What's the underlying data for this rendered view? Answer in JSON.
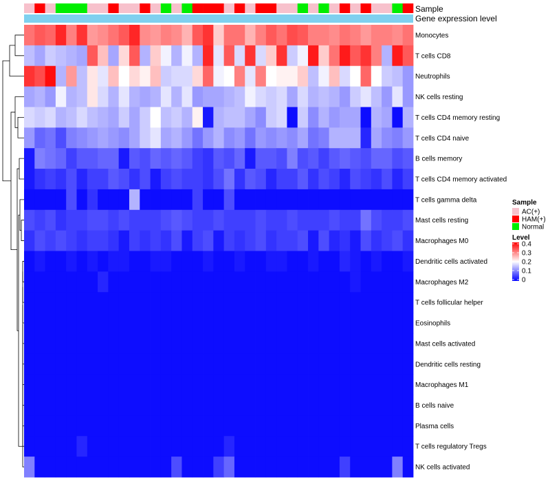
{
  "chart_data": {
    "type": "heatmap",
    "title": "",
    "annotation_tracks": [
      "Sample",
      "Gene expression level"
    ],
    "sample_groups": [
      "A",
      "H",
      "A",
      "N",
      "N",
      "N",
      "A",
      "A",
      "H",
      "A",
      "A",
      "H",
      "A",
      "N",
      "A",
      "N",
      "H",
      "H",
      "H",
      "A",
      "H",
      "A",
      "H",
      "H",
      "A",
      "A",
      "N",
      "A",
      "N",
      "A",
      "H",
      "A",
      "H",
      "A",
      "A",
      "N",
      "H"
    ],
    "group_colors": {
      "A": "#f7c1cc",
      "H": "#ff0000",
      "N": "#00ee00"
    },
    "group_legend": {
      "title": "Sample",
      "items": [
        {
          "key": "A",
          "label": "AC(+)",
          "color": "#f7c1cc"
        },
        {
          "key": "H",
          "label": "HAM(+)",
          "color": "#ff0000"
        },
        {
          "key": "N",
          "label": "Normal",
          "color": "#00ee00"
        }
      ]
    },
    "gene_expression_color": "#7fd0ef",
    "color_scale": {
      "title": "Level",
      "min": 0,
      "mid": 0.2,
      "max": 0.4,
      "low_color": "#0000ff",
      "mid_color": "#ffffff",
      "high_color": "#ff0000",
      "ticks": [
        "0.4",
        "0.3",
        "0.2",
        "0.1",
        "0"
      ]
    },
    "rows": [
      {
        "name": "Monocytes",
        "values": [
          0.31,
          0.33,
          0.32,
          0.37,
          0.3,
          0.36,
          0.28,
          0.29,
          0.31,
          0.33,
          0.37,
          0.29,
          0.28,
          0.3,
          0.29,
          0.26,
          0.33,
          0.36,
          0.24,
          0.31,
          0.31,
          0.26,
          0.3,
          0.33,
          0.31,
          0.34,
          0.33,
          0.3,
          0.3,
          0.29,
          0.31,
          0.3,
          0.28,
          0.3,
          0.3,
          0.29,
          0.31
        ]
      },
      {
        "name": "T cells CD8",
        "values": [
          0.15,
          0.13,
          0.16,
          0.15,
          0.14,
          0.13,
          0.33,
          0.25,
          0.13,
          0.23,
          0.33,
          0.14,
          0.24,
          0.19,
          0.14,
          0.19,
          0.14,
          0.37,
          0.18,
          0.33,
          0.17,
          0.36,
          0.17,
          0.24,
          0.36,
          0.16,
          0.19,
          0.38,
          0.24,
          0.31,
          0.38,
          0.33,
          0.36,
          0.3,
          0.14,
          0.38,
          0.33
        ]
      },
      {
        "name": "Neutrophils",
        "values": [
          0.36,
          0.34,
          0.39,
          0.14,
          0.28,
          0.15,
          0.22,
          0.18,
          0.25,
          0.2,
          0.23,
          0.21,
          0.25,
          0.16,
          0.17,
          0.17,
          0.23,
          0.32,
          0.19,
          0.2,
          0.3,
          0.18,
          0.3,
          0.2,
          0.21,
          0.21,
          0.24,
          0.15,
          0.19,
          0.25,
          0.17,
          0.2,
          0.32,
          0.2,
          0.16,
          0.15,
          0.12
        ]
      },
      {
        "name": "NK cells resting",
        "values": [
          0.13,
          0.14,
          0.12,
          0.19,
          0.14,
          0.15,
          0.22,
          0.17,
          0.14,
          0.18,
          0.14,
          0.13,
          0.14,
          0.18,
          0.14,
          0.18,
          0.12,
          0.13,
          0.13,
          0.14,
          0.15,
          0.19,
          0.17,
          0.16,
          0.17,
          0.13,
          0.17,
          0.14,
          0.15,
          0.14,
          0.12,
          0.16,
          0.18,
          0.15,
          0.12,
          0.18,
          0.12
        ]
      },
      {
        "name": "T cells CD4 memory resting",
        "values": [
          0.17,
          0.16,
          0.17,
          0.14,
          0.15,
          0.17,
          0.15,
          0.14,
          0.13,
          0.16,
          0.13,
          0.16,
          0.2,
          0.15,
          0.16,
          0.14,
          0.21,
          0.02,
          0.14,
          0.15,
          0.15,
          0.13,
          0.11,
          0.16,
          0.17,
          0.01,
          0.16,
          0.11,
          0.14,
          0.12,
          0.13,
          0.13,
          0.01,
          0.14,
          0.13,
          0.01,
          0.14
        ]
      },
      {
        "name": "T cells CD4 naive",
        "values": [
          0.12,
          0.08,
          0.09,
          0.06,
          0.1,
          0.11,
          0.12,
          0.13,
          0.12,
          0.11,
          0.13,
          0.16,
          0.18,
          0.13,
          0.14,
          0.12,
          0.09,
          0.12,
          0.14,
          0.11,
          0.12,
          0.09,
          0.12,
          0.11,
          0.12,
          0.11,
          0.13,
          0.09,
          0.1,
          0.14,
          0.14,
          0.14,
          0.03,
          0.13,
          0.11,
          0.1,
          0.12
        ]
      },
      {
        "name": "B cells memory",
        "values": [
          0.02,
          0.1,
          0.09,
          0.08,
          0.05,
          0.07,
          0.07,
          0.08,
          0.08,
          0.02,
          0.07,
          0.06,
          0.08,
          0.07,
          0.08,
          0.07,
          0.05,
          0.04,
          0.07,
          0.06,
          0.08,
          0.02,
          0.07,
          0.07,
          0.06,
          0.1,
          0.06,
          0.07,
          0.05,
          0.07,
          0.08,
          0.07,
          0.06,
          0.08,
          0.08,
          0.06,
          0.07
        ]
      },
      {
        "name": "T cells CD4 memory activated",
        "values": [
          0.02,
          0.04,
          0.05,
          0.04,
          0.06,
          0.03,
          0.05,
          0.05,
          0.07,
          0.06,
          0.04,
          0.06,
          0.02,
          0.05,
          0.06,
          0.05,
          0.05,
          0.04,
          0.06,
          0.09,
          0.04,
          0.07,
          0.06,
          0.03,
          0.05,
          0.05,
          0.07,
          0.04,
          0.06,
          0.05,
          0.03,
          0.06,
          0.05,
          0.04,
          0.06,
          0.03,
          0.05
        ]
      },
      {
        "name": "T cells gamma delta",
        "values": [
          0.01,
          0.01,
          0.01,
          0.01,
          0.06,
          0.01,
          0.04,
          0.01,
          0.01,
          0.01,
          0.14,
          0.01,
          0.01,
          0.01,
          0.01,
          0.01,
          0.05,
          0.01,
          0.01,
          0.06,
          0.01,
          0.01,
          0.01,
          0.01,
          0.01,
          0.01,
          0.01,
          0.01,
          0.01,
          0.01,
          0.01,
          0.01,
          0.01,
          0.01,
          0.01,
          0.01,
          0.01
        ]
      },
      {
        "name": "Mast cells resting",
        "values": [
          0.06,
          0.05,
          0.06,
          0.04,
          0.05,
          0.05,
          0.06,
          0.06,
          0.05,
          0.06,
          0.05,
          0.05,
          0.05,
          0.06,
          0.07,
          0.06,
          0.05,
          0.05,
          0.06,
          0.05,
          0.05,
          0.05,
          0.06,
          0.05,
          0.05,
          0.06,
          0.05,
          0.05,
          0.05,
          0.06,
          0.05,
          0.05,
          0.09,
          0.06,
          0.05,
          0.05,
          0.06
        ]
      },
      {
        "name": "Macrophages M0",
        "values": [
          0.04,
          0.06,
          0.05,
          0.06,
          0.05,
          0.04,
          0.05,
          0.05,
          0.04,
          0.02,
          0.05,
          0.04,
          0.05,
          0.04,
          0.06,
          0.02,
          0.05,
          0.06,
          0.02,
          0.05,
          0.04,
          0.05,
          0.06,
          0.04,
          0.05,
          0.05,
          0.06,
          0.02,
          0.06,
          0.03,
          0.04,
          0.02,
          0.06,
          0.04,
          0.05,
          0.06,
          0.04
        ]
      },
      {
        "name": "Dendritic cells activated",
        "values": [
          0.01,
          0.02,
          0.01,
          0.01,
          0.02,
          0.01,
          0.02,
          0.01,
          0.02,
          0.02,
          0.01,
          0.01,
          0.02,
          0.02,
          0.01,
          0.01,
          0.01,
          0.02,
          0.01,
          0.01,
          0.02,
          0.01,
          0.01,
          0.02,
          0.02,
          0.01,
          0.01,
          0.02,
          0.01,
          0.01,
          0.03,
          0.02,
          0.01,
          0.02,
          0.01,
          0.01,
          0.02
        ]
      },
      {
        "name": "Macrophages M2",
        "values": [
          0.01,
          0.01,
          0.01,
          0.01,
          0.01,
          0.01,
          0.01,
          0.03,
          0.01,
          0.01,
          0.01,
          0.01,
          0.01,
          0.01,
          0.01,
          0.01,
          0.01,
          0.01,
          0.01,
          0.01,
          0.01,
          0.01,
          0.01,
          0.01,
          0.01,
          0.01,
          0.01,
          0.01,
          0.01,
          0.01,
          0.01,
          0.02,
          0.01,
          0.01,
          0.01,
          0.01,
          0.01
        ]
      },
      {
        "name": "T cells follicular helper",
        "values": [
          0.01,
          0.01,
          0.01,
          0.01,
          0.01,
          0.01,
          0.01,
          0.01,
          0.01,
          0.01,
          0.01,
          0.01,
          0.01,
          0.01,
          0.01,
          0.01,
          0.01,
          0.01,
          0.01,
          0.01,
          0.01,
          0.01,
          0.01,
          0.01,
          0.01,
          0.01,
          0.01,
          0.01,
          0.01,
          0.01,
          0.01,
          0.01,
          0.01,
          0.01,
          0.01,
          0.01,
          0.01
        ]
      },
      {
        "name": "Eosinophils",
        "values": [
          0.01,
          0.01,
          0.01,
          0.01,
          0.01,
          0.01,
          0.01,
          0.01,
          0.01,
          0.01,
          0.01,
          0.01,
          0.01,
          0.01,
          0.01,
          0.01,
          0.01,
          0.01,
          0.01,
          0.01,
          0.01,
          0.01,
          0.01,
          0.01,
          0.01,
          0.01,
          0.01,
          0.01,
          0.01,
          0.01,
          0.01,
          0.01,
          0.01,
          0.01,
          0.01,
          0.01,
          0.01
        ]
      },
      {
        "name": "Mast cells activated",
        "values": [
          0.01,
          0.01,
          0.01,
          0.01,
          0.01,
          0.01,
          0.01,
          0.01,
          0.01,
          0.01,
          0.01,
          0.01,
          0.01,
          0.01,
          0.01,
          0.01,
          0.01,
          0.01,
          0.01,
          0.01,
          0.01,
          0.01,
          0.01,
          0.01,
          0.01,
          0.01,
          0.01,
          0.01,
          0.01,
          0.01,
          0.01,
          0.01,
          0.01,
          0.01,
          0.01,
          0.01,
          0.01
        ]
      },
      {
        "name": "Dendritic cells resting",
        "values": [
          0.01,
          0.01,
          0.01,
          0.01,
          0.01,
          0.01,
          0.01,
          0.01,
          0.01,
          0.01,
          0.01,
          0.01,
          0.01,
          0.01,
          0.01,
          0.01,
          0.01,
          0.01,
          0.01,
          0.01,
          0.01,
          0.01,
          0.01,
          0.01,
          0.01,
          0.01,
          0.01,
          0.01,
          0.01,
          0.01,
          0.01,
          0.01,
          0.01,
          0.01,
          0.01,
          0.01,
          0.01
        ]
      },
      {
        "name": "Macrophages M1",
        "values": [
          0.01,
          0.01,
          0.01,
          0.01,
          0.01,
          0.01,
          0.01,
          0.01,
          0.01,
          0.01,
          0.01,
          0.01,
          0.01,
          0.01,
          0.01,
          0.01,
          0.01,
          0.01,
          0.01,
          0.01,
          0.01,
          0.01,
          0.01,
          0.01,
          0.01,
          0.01,
          0.01,
          0.01,
          0.01,
          0.01,
          0.01,
          0.01,
          0.01,
          0.01,
          0.01,
          0.01,
          0.01
        ]
      },
      {
        "name": "B cells naive",
        "values": [
          0.01,
          0.01,
          0.01,
          0.01,
          0.01,
          0.01,
          0.01,
          0.01,
          0.01,
          0.01,
          0.01,
          0.01,
          0.01,
          0.01,
          0.01,
          0.01,
          0.01,
          0.01,
          0.01,
          0.01,
          0.01,
          0.01,
          0.01,
          0.01,
          0.01,
          0.01,
          0.01,
          0.01,
          0.01,
          0.01,
          0.01,
          0.01,
          0.01,
          0.01,
          0.01,
          0.01,
          0.01
        ]
      },
      {
        "name": "Plasma cells",
        "values": [
          0.01,
          0.01,
          0.01,
          0.01,
          0.01,
          0.01,
          0.01,
          0.01,
          0.01,
          0.01,
          0.01,
          0.01,
          0.01,
          0.01,
          0.01,
          0.01,
          0.01,
          0.01,
          0.01,
          0.01,
          0.01,
          0.01,
          0.01,
          0.01,
          0.01,
          0.01,
          0.01,
          0.01,
          0.01,
          0.01,
          0.01,
          0.01,
          0.01,
          0.01,
          0.01,
          0.01,
          0.01
        ]
      },
      {
        "name": "T cells regulatory  Tregs",
        "values": [
          0.01,
          0.01,
          0.01,
          0.01,
          0.01,
          0.03,
          0.01,
          0.01,
          0.01,
          0.01,
          0.01,
          0.01,
          0.01,
          0.01,
          0.01,
          0.01,
          0.01,
          0.01,
          0.01,
          0.03,
          0.01,
          0.01,
          0.01,
          0.01,
          0.01,
          0.01,
          0.01,
          0.01,
          0.01,
          0.01,
          0.01,
          0.01,
          0.01,
          0.01,
          0.01,
          0.01,
          0.01
        ]
      },
      {
        "name": "NK cells activated",
        "values": [
          0.1,
          0.01,
          0.01,
          0.01,
          0.01,
          0.01,
          0.01,
          0.01,
          0.01,
          0.01,
          0.01,
          0.01,
          0.01,
          0.01,
          0.06,
          0.01,
          0.01,
          0.01,
          0.05,
          0.08,
          0.01,
          0.01,
          0.01,
          0.01,
          0.01,
          0.01,
          0.01,
          0.01,
          0.01,
          0.01,
          0.05,
          0.01,
          0.01,
          0.01,
          0.01,
          0.1,
          0.01
        ]
      }
    ]
  }
}
